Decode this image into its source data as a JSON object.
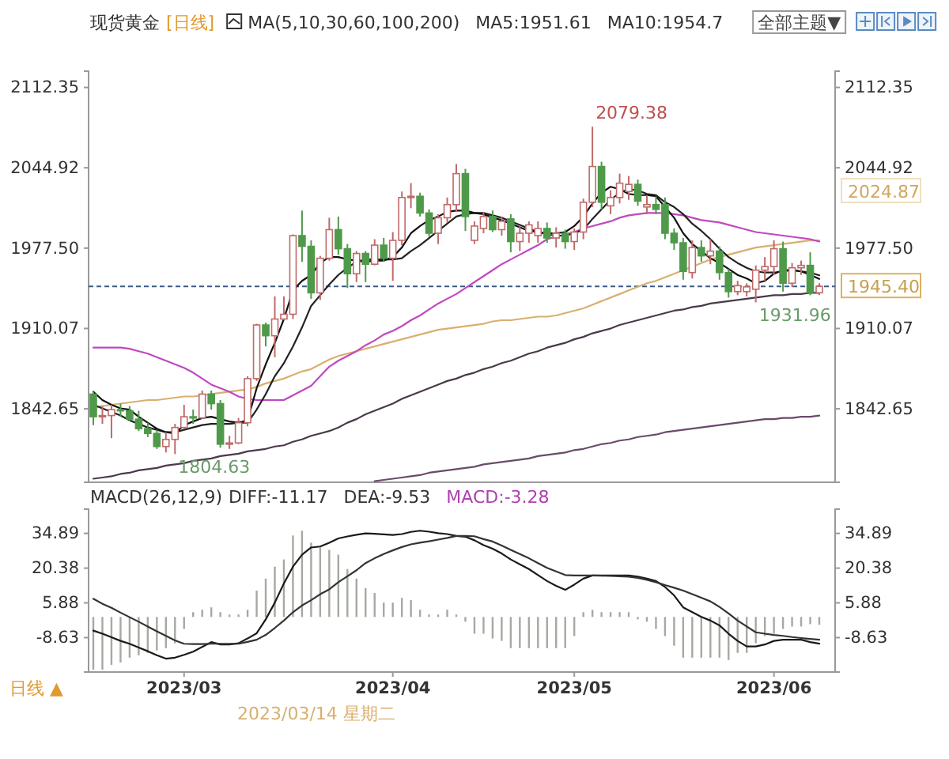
{
  "chart_data": [
    {
      "type": "candlestick",
      "title": "现货黄金",
      "subtitle": "[日线]",
      "categories": [
        null,
        null,
        null,
        null,
        null,
        null,
        null,
        null,
        null,
        null,
        "2023/03",
        null,
        null,
        null,
        null,
        null,
        null,
        null,
        null,
        null,
        null,
        null,
        null,
        null,
        null,
        null,
        null,
        null,
        null,
        null,
        null,
        null,
        null,
        "2023/04",
        null,
        null,
        null,
        null,
        null,
        null,
        null,
        null,
        null,
        null,
        null,
        null,
        null,
        null,
        null,
        null,
        null,
        null,
        null,
        "2023/05",
        null,
        null,
        null,
        null,
        null,
        null,
        null,
        null,
        null,
        null,
        null,
        null,
        null,
        null,
        null,
        null,
        null,
        null,
        null,
        null,
        null,
        "2023/06",
        null,
        null,
        null,
        null,
        null
      ],
      "ohlc": [
        [
          1855,
          1857,
          1829,
          1836
        ],
        [
          1836,
          1845,
          1830,
          1837
        ],
        [
          1837,
          1846,
          1818,
          1842
        ],
        [
          1842,
          1847,
          1836,
          1841
        ],
        [
          1841,
          1845,
          1832,
          1834
        ],
        [
          1834,
          1841,
          1824,
          1826
        ],
        [
          1826,
          1831,
          1819,
          1822
        ],
        [
          1822,
          1825,
          1809,
          1811
        ],
        [
          1811,
          1823,
          1806,
          1817
        ],
        [
          1817,
          1830,
          1804.63,
          1827
        ],
        [
          1827,
          1846,
          1826,
          1836
        ],
        [
          1836,
          1842,
          1830,
          1835
        ],
        [
          1835,
          1858,
          1834,
          1855
        ],
        [
          1855,
          1858,
          1842,
          1847
        ],
        [
          1847,
          1850,
          1810,
          1813
        ],
        [
          1813,
          1820,
          1809,
          1814
        ],
        [
          1814,
          1835,
          1813,
          1831
        ],
        [
          1831,
          1870,
          1828,
          1868
        ],
        [
          1868,
          1914,
          1866,
          1913
        ],
        [
          1913,
          1915,
          1895,
          1904
        ],
        [
          1904,
          1937,
          1886,
          1918
        ],
        [
          1918,
          1937,
          1917,
          1922
        ],
        [
          1922,
          1989,
          1918,
          1988
        ],
        [
          1988,
          2009,
          1966,
          1979
        ],
        [
          1979,
          1984,
          1935,
          1940
        ],
        [
          1940,
          1971,
          1934,
          1969
        ],
        [
          1969,
          2003,
          1967,
          1993
        ],
        [
          1993,
          2004,
          1972,
          1977
        ],
        [
          1977,
          1981,
          1944,
          1956
        ],
        [
          1956,
          1975,
          1949,
          1973
        ],
        [
          1973,
          1975,
          1949,
          1964
        ],
        [
          1964,
          1985,
          1963,
          1980
        ],
        [
          1980,
          1986,
          1966,
          1969
        ],
        [
          1969,
          1991,
          1950,
          1984
        ],
        [
          1984,
          2025,
          1980,
          2020
        ],
        [
          2020,
          2032,
          2011,
          2021
        ],
        [
          2021,
          2024,
          2004,
          2007
        ],
        [
          2007,
          2010,
          1987,
          1990
        ],
        [
          1990,
          2006,
          1981,
          2003
        ],
        [
          2003,
          2020,
          1999,
          2014
        ],
        [
          2014,
          2048,
          2008,
          2040
        ],
        [
          2040,
          2044,
          1992,
          2004
        ],
        [
          1984,
          2000,
          1981,
          1996
        ],
        [
          1994,
          2008,
          1990,
          2004
        ],
        [
          2004,
          2009,
          1991,
          1993
        ],
        [
          1993,
          2004,
          1988,
          2000
        ],
        [
          2002,
          2006,
          1974,
          1983
        ],
        [
          1983,
          1996,
          1975,
          1990
        ],
        [
          1990,
          2000,
          1982,
          1997
        ],
        [
          1988,
          2000,
          1982,
          1994
        ],
        [
          1994,
          1999,
          1982,
          1986
        ],
        [
          1986,
          1995,
          1978,
          1990
        ],
        [
          1990,
          1993,
          1977,
          1983
        ],
        [
          1983,
          1994,
          1976,
          1991
        ],
        [
          1991,
          2019,
          1985,
          2016
        ],
        [
          2016,
          2079.38,
          2012,
          2046
        ],
        [
          2046,
          2050,
          2010,
          2016
        ],
        [
          2013,
          2026,
          2006,
          2020
        ],
        [
          2020,
          2040,
          2015,
          2032
        ],
        [
          2025,
          2038,
          2018,
          2031
        ],
        [
          2031,
          2035,
          2013,
          2017
        ],
        [
          2012,
          2022,
          2006,
          2014
        ],
        [
          2014,
          2021,
          2006,
          2010
        ],
        [
          2014,
          2020,
          1985,
          1990
        ],
        [
          1990,
          1994,
          1976,
          1982
        ],
        [
          1982,
          1986,
          1951,
          1958
        ],
        [
          1957,
          1984,
          1952,
          1978
        ],
        [
          1978,
          1984,
          1966,
          1971
        ],
        [
          1971,
          1985,
          1964,
          1975
        ],
        [
          1975,
          1979,
          1951,
          1957
        ],
        [
          1957,
          1960,
          1936,
          1941
        ],
        [
          1941,
          1950,
          1938,
          1946
        ],
        [
          1941,
          1948,
          1937,
          1945
        ],
        [
          1943,
          1963,
          1931.96,
          1959
        ],
        [
          1959,
          1970,
          1950,
          1962
        ],
        [
          1962,
          1984,
          1955,
          1977
        ],
        [
          1977,
          1983,
          1941,
          1948
        ],
        [
          1948,
          1965,
          1945,
          1961
        ],
        [
          1961,
          1967,
          1955,
          1963
        ],
        [
          1963,
          1974,
          1938,
          1940
        ],
        [
          1940,
          1948,
          1938,
          1945.4
        ]
      ],
      "colors": [
        "#4f9a4a",
        "#c06a6a",
        "#c06a6a",
        "#4f9a4a",
        "#4f9a4a",
        "#4f9a4a",
        "#4f9a4a",
        "#4f9a4a",
        "#c06a6a",
        "#c06a6a",
        "#c06a6a",
        "#4f9a4a",
        "#c06a6a",
        "#4f9a4a",
        "#4f9a4a",
        "#c06a6a",
        "#c06a6a",
        "#c06a6a",
        "#c06a6a",
        "#4f9a4a",
        "#c06a6a",
        "#c06a6a",
        "#c06a6a",
        "#4f9a4a",
        "#4f9a4a",
        "#c06a6a",
        "#c06a6a",
        "#4f9a4a",
        "#4f9a4a",
        "#c06a6a",
        "#4f9a4a",
        "#c06a6a",
        "#4f9a4a",
        "#c06a6a",
        "#c06a6a",
        "#c06a6a",
        "#4f9a4a",
        "#4f9a4a",
        "#c06a6a",
        "#c06a6a",
        "#c06a6a",
        "#4f9a4a",
        "#c06a6a",
        "#c06a6a",
        "#4f9a4a",
        "#c06a6a",
        "#4f9a4a",
        "#c06a6a",
        "#c06a6a",
        "#c06a6a",
        "#4f9a4a",
        "#c06a6a",
        "#4f9a4a",
        "#c06a6a",
        "#c06a6a",
        "#c06a6a",
        "#4f9a4a",
        "#c06a6a",
        "#c06a6a",
        "#c06a6a",
        "#4f9a4a",
        "#c06a6a",
        "#4f9a4a",
        "#4f9a4a",
        "#4f9a4a",
        "#4f9a4a",
        "#c06a6a",
        "#4f9a4a",
        "#c06a6a",
        "#4f9a4a",
        "#4f9a4a",
        "#c06a6a",
        "#c06a6a",
        "#c06a6a",
        "#c06a6a",
        "#c06a6a",
        "#4f9a4a",
        "#c06a6a",
        "#c06a6a",
        "#4f9a4a",
        "#c06a6a"
      ],
      "series": [
        {
          "type": "line",
          "color": "#4a3a4a",
          "values": [
            1784,
            1785,
            1786,
            1788,
            1789,
            1791,
            1792,
            1793,
            1795,
            1796,
            1797,
            1799,
            1800,
            1801,
            1803,
            1804,
            1805,
            1807,
            1808,
            1809,
            1811,
            1812,
            1815,
            1817,
            1820,
            1822,
            1824,
            1827,
            1831,
            1834,
            1838,
            1841,
            1844,
            1847,
            1851,
            1854,
            1857,
            1860,
            1863,
            1866,
            1868,
            1871,
            1873,
            1876,
            1878,
            1881,
            1883,
            1886,
            1889,
            1891,
            1894,
            1896,
            1898,
            1901,
            1903,
            1906,
            1908,
            1910,
            1913,
            1915,
            1917,
            1919,
            1921,
            1923,
            1925,
            1926,
            1928,
            1929,
            1931,
            1932,
            1933,
            1934,
            1935,
            1936,
            1937,
            1938,
            1938,
            1939,
            1939,
            1940,
            1940
          ]
        },
        {
          "type": "line",
          "color": "#6a4a6a",
          "values": [
            null,
            null,
            null,
            null,
            null,
            null,
            null,
            null,
            null,
            null,
            null,
            null,
            null,
            null,
            null,
            null,
            null,
            null,
            null,
            null,
            null,
            null,
            null,
            null,
            null,
            null,
            null,
            null,
            null,
            null,
            null,
            1782,
            1783,
            1784,
            1785,
            1786,
            1787,
            1789,
            1790,
            1791,
            1792,
            1793,
            1794,
            1796,
            1797,
            1798,
            1799,
            1800,
            1801,
            1803,
            1804,
            1805,
            1806,
            1808,
            1809,
            1811,
            1813,
            1814,
            1816,
            1817,
            1819,
            1820,
            1821,
            1823,
            1824,
            1825,
            1826,
            1827,
            1828,
            1829,
            1830,
            1831,
            1832,
            1833,
            1834,
            1834,
            1835,
            1835,
            1836,
            1836,
            1837
          ]
        },
        {
          "type": "line",
          "color": "#d8b070",
          "values": [
            1844,
            1845,
            1846,
            1847,
            1848,
            1849,
            1850,
            1850,
            1851,
            1852,
            1853,
            1853,
            1854,
            1855,
            1856,
            1857,
            1858,
            1859,
            1861,
            1864,
            1866,
            1868,
            1871,
            1874,
            1876,
            1880,
            1884,
            1887,
            1889,
            1891,
            1893,
            1895,
            1897,
            1899,
            1901,
            1903,
            1905,
            1907,
            1909,
            1910,
            1911,
            1912,
            1913,
            1914,
            1916,
            1917,
            1917,
            1918,
            1919,
            1920,
            1920,
            1921,
            1923,
            1925,
            1927,
            1930,
            1933,
            1936,
            1939,
            1942,
            1945,
            1948,
            1950,
            1953,
            1956,
            1959,
            1962,
            1965,
            1968,
            1970,
            1972,
            1974,
            1976,
            1978,
            1979,
            1980,
            1981,
            1982,
            1983,
            1984,
            1984
          ]
        },
        {
          "type": "line",
          "color": "#c048c0",
          "values": [
            1894,
            1894,
            1894,
            1894,
            1893,
            1891,
            1889,
            1886,
            1883,
            1880,
            1877,
            1873,
            1868,
            1863,
            1860,
            1857,
            1853,
            1851,
            1850,
            1850,
            1850,
            1850,
            1854,
            1858,
            1862,
            1870,
            1878,
            1883,
            1887,
            1891,
            1896,
            1900,
            1905,
            1908,
            1912,
            1917,
            1921,
            1926,
            1931,
            1935,
            1939,
            1944,
            1949,
            1954,
            1959,
            1964,
            1968,
            1972,
            1976,
            1980,
            1985,
            1987,
            1989,
            1991,
            1994,
            1996,
            1998,
            2000,
            2003,
            2005,
            2006,
            2007,
            2007,
            2007,
            2006,
            2005,
            2003,
            2001,
            2000,
            1999,
            1997,
            1995,
            1993,
            1991,
            1990,
            1989,
            1988,
            1987,
            1986,
            1985,
            1983
          ]
        },
        {
          "type": "line",
          "color": "#222222",
          "values": [
            1846,
            1843,
            1840,
            1837,
            1833,
            1830,
            1827,
            1825,
            1823,
            1823,
            1825,
            1827,
            1829,
            1830,
            1830,
            1830,
            1831,
            1831,
            1842,
            1855,
            1870,
            1881,
            1895,
            1911,
            1929,
            1938,
            1947,
            1955,
            1961,
            1966,
            1968,
            1968,
            1968,
            1968,
            1969,
            1975,
            1980,
            1986,
            1992,
            1998,
            2004,
            2006,
            2007,
            2007,
            2005,
            2003,
            2000,
            1997,
            1994,
            1991,
            1989,
            1988,
            1988,
            1990,
            1993,
            2002,
            2010,
            2018,
            2024,
            2027,
            2026,
            2023,
            2022,
            2016,
            2012,
            2006,
            1998,
            1992,
            1985,
            1977,
            1970,
            1965,
            1961,
            1958,
            1957,
            1957,
            1958,
            1959,
            1958,
            1957,
            1954.7
          ]
        },
        {
          "type": "line",
          "color": "#111111",
          "values": [
            1857,
            1850,
            1846,
            1843,
            1842,
            1836,
            1831,
            1826,
            1823,
            1822,
            1829,
            1832,
            1835,
            1836,
            1834,
            1832,
            1831,
            1833,
            1860,
            1880,
            1898,
            1918,
            1942,
            1950,
            1955,
            1965,
            1970,
            1970,
            1968,
            1967,
            1966,
            1967,
            1967,
            1970,
            1978,
            1990,
            1996,
            2001,
            2004,
            2008,
            2009,
            2009,
            2007,
            2006,
            2003,
            2001,
            1998,
            1995,
            1992,
            1991,
            1990,
            1990,
            1991,
            1996,
            2004,
            2015,
            2024,
            2029,
            2027,
            2023,
            2022,
            2022,
            2021,
            2012,
            2003,
            1990,
            1981,
            1975,
            1969,
            1965,
            1960,
            1955,
            1952,
            1948,
            1950,
            1956,
            1959,
            1959,
            1958,
            1955,
            1951.61
          ]
        }
      ],
      "ylim": [
        1781,
        2126
      ],
      "yticks": [
        1842.65,
        1910.07,
        {
          "value": 1977.5,
          "label": "1977.50"
        },
        2044.92,
        2112.35
      ],
      "y2lim": [
        1781,
        2126
      ],
      "y2ticks": [
        1842.65,
        1910.07,
        {
          "value": 1977.5,
          "label": "1977.50"
        },
        2044.92,
        2112.35
      ],
      "tick_labels": "y",
      "ref_lines": [
        {
          "axis": "y2",
          "value": 1945.4,
          "label": "1945.40",
          "color": "#3a5a8a",
          "line_style": "dashed"
        }
      ],
      "annotations": [
        "MA(5,10,30,60,100,200)",
        "MA5:1951.61",
        "MA10:1954.7",
        "全部主题▼",
        "2079.38",
        "1804.63",
        "1931.96",
        "2024.87"
      ]
    },
    {
      "type": "bar",
      "title": "MACD(26,12,9)",
      "categories": [
        null,
        null,
        null,
        null,
        null,
        null,
        null,
        null,
        null,
        null,
        "2023/03",
        null,
        null,
        null,
        null,
        null,
        null,
        null,
        null,
        null,
        null,
        null,
        null,
        null,
        null,
        null,
        null,
        null,
        null,
        null,
        null,
        null,
        null,
        "2023/04",
        null,
        null,
        null,
        null,
        null,
        null,
        null,
        null,
        null,
        null,
        null,
        null,
        null,
        null,
        null,
        null,
        null,
        null,
        null,
        "2023/05",
        null,
        null,
        null,
        null,
        null,
        null,
        null,
        null,
        null,
        null,
        null,
        null,
        null,
        null,
        null,
        null,
        null,
        null,
        null,
        null,
        null,
        "2023/06",
        null,
        null,
        null,
        null,
        null
      ],
      "series": [
        {
          "type": "bar",
          "color": "#a4aaa0",
          "values": [
            -22,
            -22,
            -20,
            -19,
            -17,
            -16,
            -15,
            -14,
            -13,
            -11,
            -5,
            2,
            3,
            4,
            2,
            1,
            1,
            3,
            11,
            16,
            21,
            24,
            34,
            36,
            31,
            29,
            28,
            26,
            20,
            16,
            12,
            10,
            6,
            6,
            8,
            7,
            3,
            1,
            1,
            3,
            1,
            -2,
            -7,
            -7,
            -9,
            -10,
            -13,
            -13,
            -13,
            -13,
            -13,
            -13,
            -13,
            -8,
            2,
            3,
            2,
            2,
            2,
            2,
            -1,
            -2,
            -5,
            -8,
            -12,
            -17,
            -17,
            -17,
            -17,
            -17,
            -18,
            -15,
            -15,
            -11,
            -8,
            -7,
            -5,
            -4,
            -4,
            -3,
            -3.28
          ]
        },
        {
          "type": "line",
          "color": "#1a1a1a",
          "values": [
            -5.7,
            -7,
            -8.5,
            -10,
            -11.2,
            -12.8,
            -14.3,
            -16,
            -17.4,
            -17,
            -15.8,
            -14.5,
            -12.5,
            -10.5,
            -11.5,
            -11.5,
            -11,
            -9,
            -6.8,
            -1,
            6,
            14,
            21,
            26,
            29,
            29.4,
            31,
            32.8,
            33.6,
            34.3,
            34.9,
            34.7,
            34.5,
            34.2,
            34.6,
            35.5,
            36,
            35.6,
            35,
            34.6,
            33.8,
            33.5,
            32,
            30,
            28.5,
            26.5,
            24,
            22,
            20,
            17.5,
            15,
            13,
            11.3,
            13.5,
            16,
            17.3,
            17.3,
            17.3,
            17.3,
            17.3,
            16.8,
            16,
            15,
            12.5,
            9,
            4,
            2,
            0,
            -1.5,
            -3.5,
            -7,
            -10,
            -12.3,
            -12.3,
            -11.5,
            -10,
            -9.5,
            -9.5,
            -9.5,
            -10.5,
            -11.17
          ]
        },
        {
          "type": "line",
          "color": "#333333",
          "values": [
            7.6,
            5.5,
            3.8,
            1.8,
            -0.1,
            -2,
            -4,
            -6,
            -7.9,
            -9.8,
            -11.2,
            -11.3,
            -11.3,
            -11.2,
            -11.2,
            -11.2,
            -11.2,
            -10.4,
            -9.5,
            -7.5,
            -4.6,
            -1.5,
            2,
            4.8,
            7,
            9.5,
            11.5,
            14.5,
            17,
            19.5,
            22.5,
            24.5,
            26.3,
            27.8,
            29.2,
            30.3,
            31,
            31.6,
            32.3,
            33,
            33.8,
            33.8,
            33.7,
            32.5,
            31.5,
            29.8,
            28,
            26.3,
            24.5,
            22.5,
            20.5,
            19,
            17.5,
            17.3,
            17.3,
            17.3,
            17.2,
            17.1,
            17,
            16.8,
            16.3,
            15.5,
            14.5,
            13.3,
            12.2,
            11,
            9.5,
            8,
            6.5,
            4.2,
            1.5,
            -1.5,
            -4,
            -6.4,
            -7,
            -7.5,
            -7.9,
            -8.4,
            -8.8,
            -9.2,
            -9.53
          ]
        }
      ],
      "ylim": [
        -23,
        45
      ],
      "yticks": [
        -8.63,
        5.88,
        20.38,
        34.89
      ],
      "y2lim": [
        -23,
        45
      ],
      "y2ticks": [
        -8.63,
        5.88,
        20.38,
        34.89
      ],
      "annotations": [
        "DIFF:-11.17",
        "DEA:-9.53",
        "MACD:-3.28",
        "日线 ▲",
        "2023/03/14 星期二"
      ]
    }
  ]
}
